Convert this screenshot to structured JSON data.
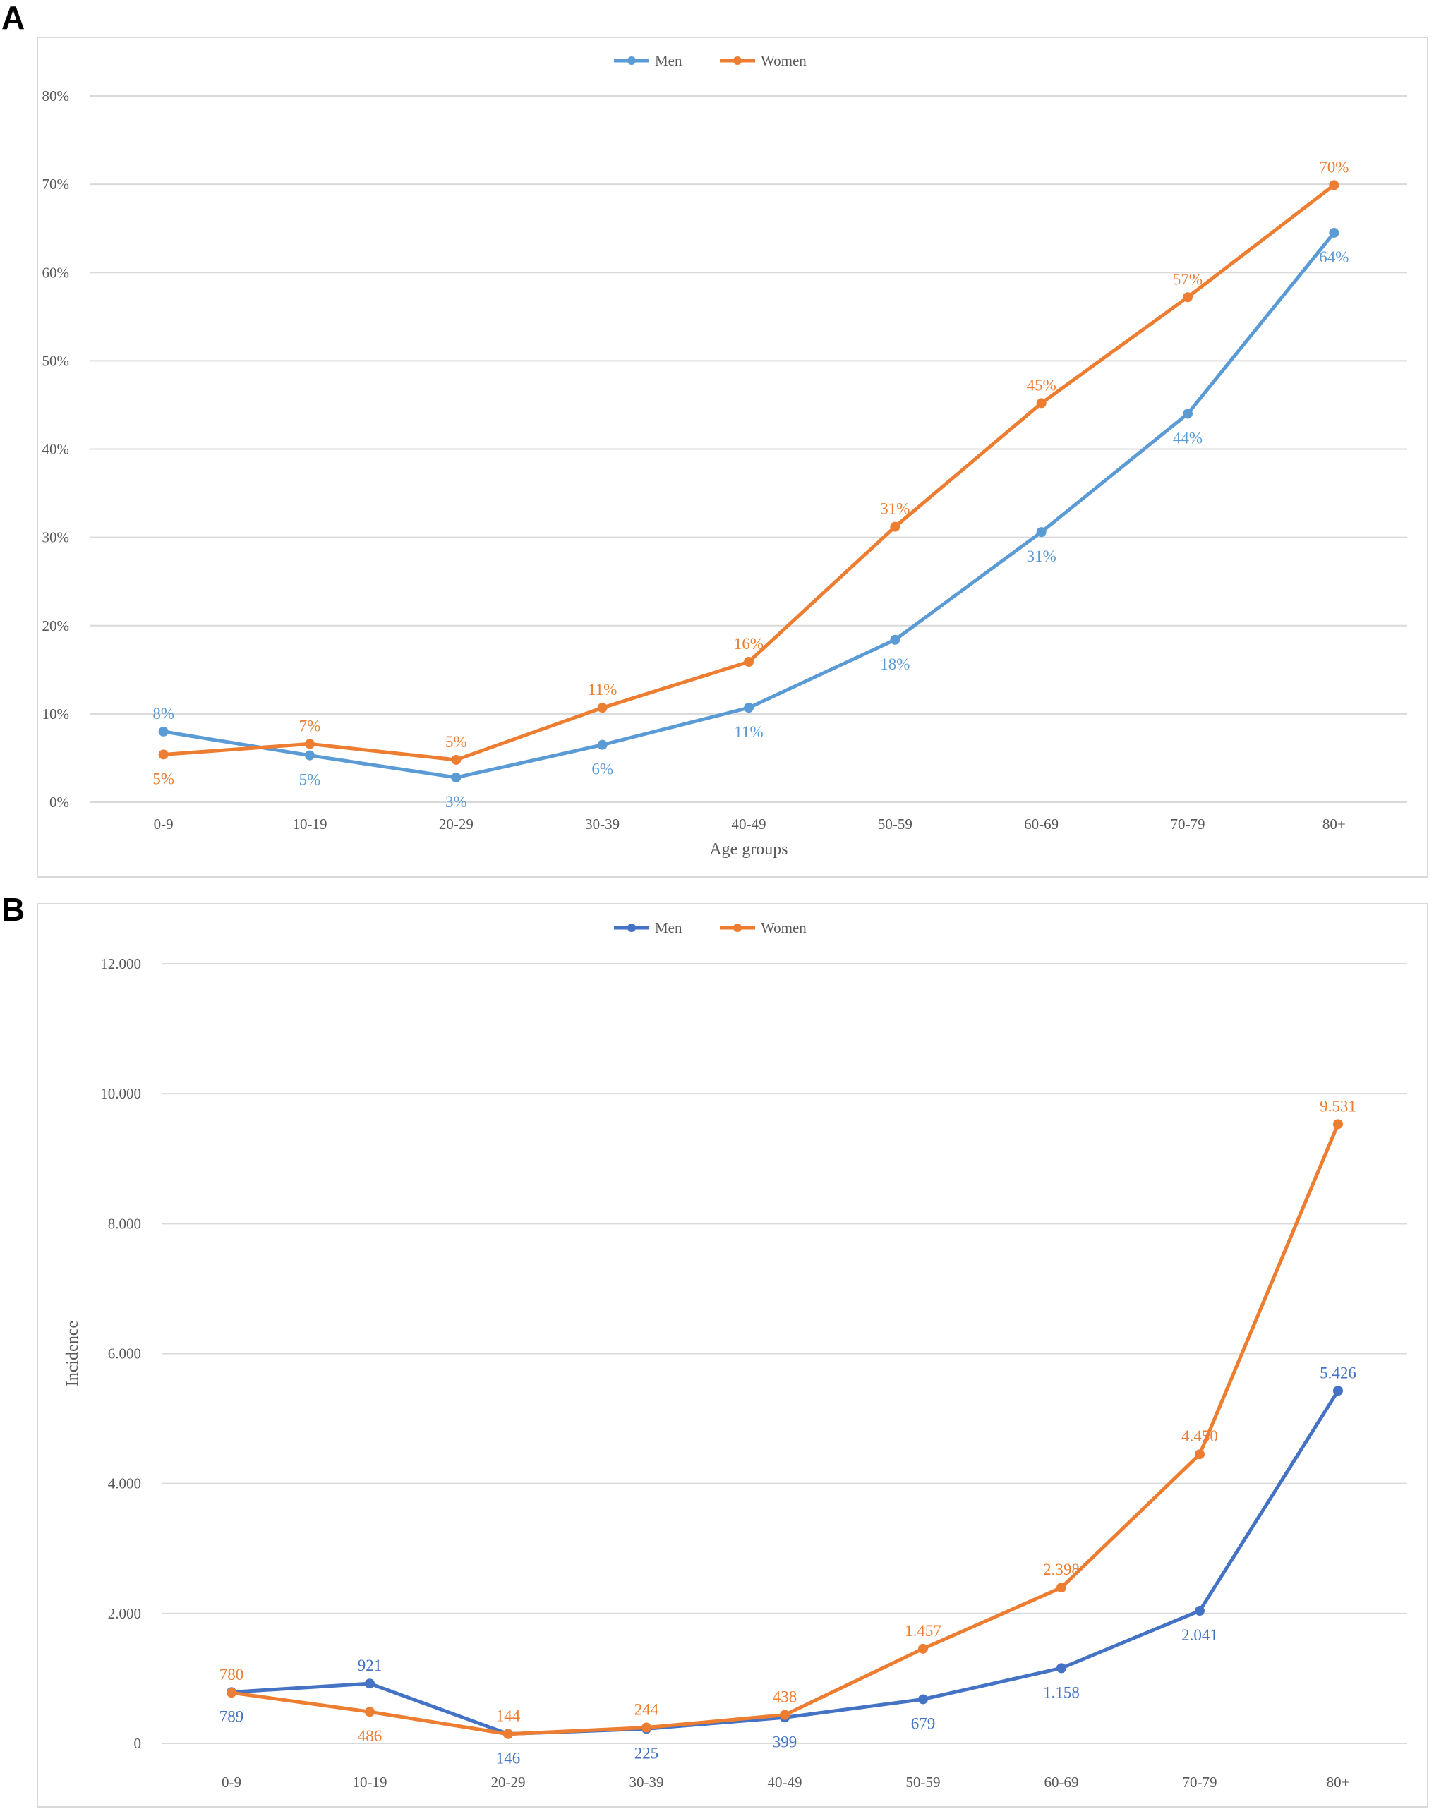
{
  "panels": [
    {
      "letter": "A"
    },
    {
      "letter": "B"
    }
  ],
  "chart_data": [
    {
      "type": "line",
      "categories": [
        "0-9",
        "10-19",
        "20-29",
        "30-39",
        "40-49",
        "50-59",
        "60-69",
        "70-79",
        "80+"
      ],
      "series": [
        {
          "name": "Men",
          "color": "#5b9bd5",
          "values": [
            8.0,
            5.3,
            2.8,
            6.5,
            10.7,
            18.4,
            30.6,
            44.0,
            64.5
          ],
          "labels": [
            "8%",
            "5%",
            "3%",
            "6%",
            "11%",
            "18%",
            "31%",
            "44%",
            "64%"
          ],
          "label_pos": [
            "above",
            "below",
            "below",
            "below",
            "below",
            "below",
            "below",
            "below",
            "below"
          ]
        },
        {
          "name": "Women",
          "color": "#ed7d31",
          "values": [
            5.4,
            6.6,
            4.8,
            10.7,
            15.9,
            31.2,
            45.2,
            57.2,
            69.9
          ],
          "labels": [
            "5%",
            "7%",
            "5%",
            "11%",
            "16%",
            "31%",
            "45%",
            "57%",
            "70%"
          ],
          "label_pos": [
            "below",
            "above",
            "above",
            "above",
            "above",
            "above",
            "above",
            "above",
            "above"
          ]
        }
      ],
      "xlabel": "Age groups",
      "ylabel": "",
      "ylim": [
        0,
        80
      ],
      "yticks": [
        0,
        10,
        20,
        30,
        40,
        50,
        60,
        70,
        80
      ],
      "ytick_labels": [
        "0%",
        "10%",
        "20%",
        "30%",
        "40%",
        "50%",
        "60%",
        "70%",
        "80%"
      ],
      "grid": true,
      "legend": "top-center"
    },
    {
      "type": "line",
      "categories": [
        "0-9",
        "10-19",
        "20-29",
        "30-39",
        "40-49",
        "50-59",
        "60-69",
        "70-79",
        "80+"
      ],
      "series": [
        {
          "name": "Men",
          "color": "#4472c4",
          "values": [
            789,
            921,
            146,
            225,
            399,
            679,
            1158,
            2041,
            5426
          ],
          "labels": [
            "789",
            "921",
            "146",
            "225",
            "399",
            "679",
            "1.158",
            "2.041",
            "5.426"
          ],
          "label_pos": [
            "below",
            "above",
            "below",
            "below",
            "below",
            "below",
            "below",
            "below",
            "above"
          ]
        },
        {
          "name": "Women",
          "color": "#ed7d31",
          "values": [
            780,
            486,
            144,
            244,
            438,
            1457,
            2398,
            4450,
            9531
          ],
          "labels": [
            "780",
            "486",
            "144",
            "244",
            "438",
            "1.457",
            "2.398",
            "4.450",
            "9.531"
          ],
          "label_pos": [
            "above",
            "below",
            "above",
            "above",
            "above",
            "above",
            "above",
            "above",
            "above"
          ]
        }
      ],
      "xlabel": "",
      "ylabel": "Incidence",
      "ylim": [
        0,
        12000
      ],
      "yticks": [
        0,
        2000,
        4000,
        6000,
        8000,
        10000,
        12000
      ],
      "ytick_labels": [
        "0",
        "2.000",
        "4.000",
        "6.000",
        "8.000",
        "10.000",
        "12.000"
      ],
      "grid": true,
      "legend": "top-center"
    }
  ]
}
